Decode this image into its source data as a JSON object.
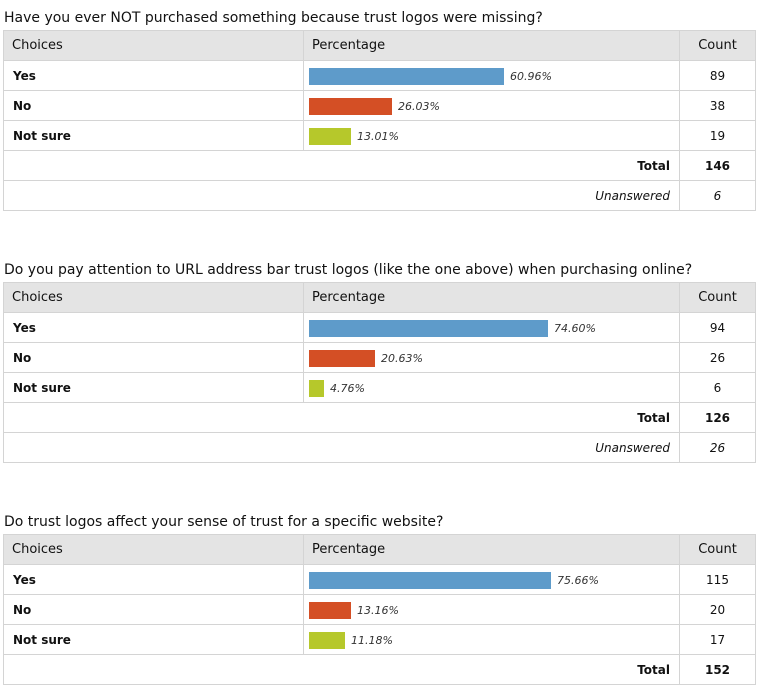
{
  "headers": {
    "choices": "Choices",
    "percentage": "Percentage",
    "count": "Count"
  },
  "labels": {
    "total": "Total",
    "unanswered": "Unanswered"
  },
  "colors": {
    "yes": "#5e9bca",
    "no": "#d44f25",
    "not_sure": "#b6c82b"
  },
  "chart_data": [
    {
      "type": "table",
      "title": "Have you ever NOT purchased something because trust logos were missing?",
      "rows": [
        {
          "choice": "Yes",
          "percent": 60.96,
          "percent_label": "60.96%",
          "count": "89"
        },
        {
          "choice": "No",
          "percent": 26.03,
          "percent_label": "26.03%",
          "count": "38"
        },
        {
          "choice": "Not sure",
          "percent": 13.01,
          "percent_label": "13.01%",
          "count": "19"
        }
      ],
      "total": "146",
      "unanswered": "6"
    },
    {
      "type": "table",
      "title": "Do you pay attention to URL address bar trust logos (like the one above) when purchasing online?",
      "rows": [
        {
          "choice": "Yes",
          "percent": 74.6,
          "percent_label": "74.60%",
          "count": "94"
        },
        {
          "choice": "No",
          "percent": 20.63,
          "percent_label": "20.63%",
          "count": "26"
        },
        {
          "choice": "Not sure",
          "percent": 4.76,
          "percent_label": "4.76%",
          "count": "6"
        }
      ],
      "total": "126",
      "unanswered": "26"
    },
    {
      "type": "table",
      "title": "Do trust logos affect your sense of trust for a specific website?",
      "rows": [
        {
          "choice": "Yes",
          "percent": 75.66,
          "percent_label": "75.66%",
          "count": "115"
        },
        {
          "choice": "No",
          "percent": 13.16,
          "percent_label": "13.16%",
          "count": "20"
        },
        {
          "choice": "Not sure",
          "percent": 11.18,
          "percent_label": "11.18%",
          "count": "17"
        }
      ],
      "total": "152"
    }
  ]
}
